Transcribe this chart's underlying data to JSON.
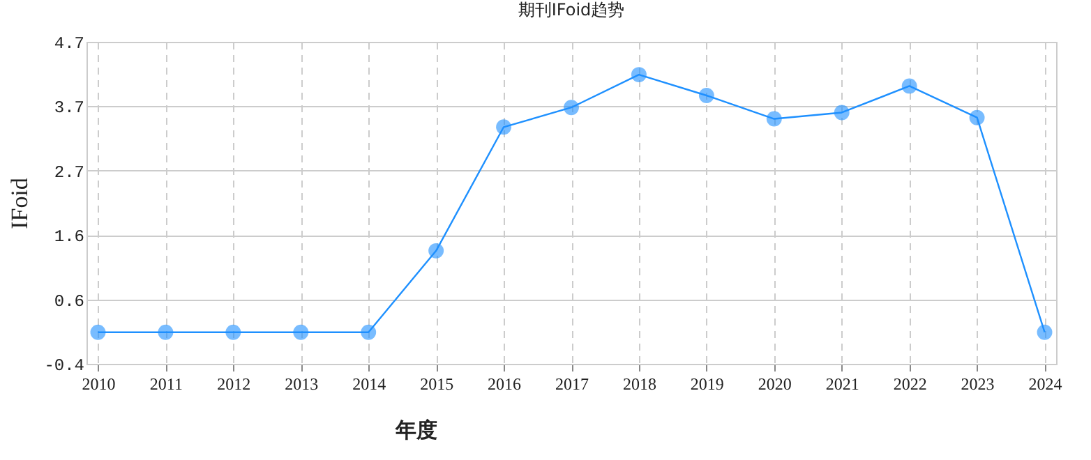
{
  "chart_data": {
    "type": "line",
    "title": "期刊IFoid趋势",
    "xlabel": "年度",
    "ylabel": "IFoid",
    "categories": [
      "2010",
      "2011",
      "2012",
      "2013",
      "2014",
      "2015",
      "2016",
      "2017",
      "2018",
      "2019",
      "2020",
      "2021",
      "2022",
      "2023",
      "2024"
    ],
    "series": [
      {
        "color": "#1e90ff",
        "values": [
          0.1,
          0.1,
          0.1,
          0.1,
          0.1,
          1.39,
          3.35,
          3.66,
          4.18,
          3.85,
          3.48,
          3.58,
          4.0,
          3.5,
          0.1
        ]
      }
    ],
    "ylim": [
      -0.4,
      4.7
    ],
    "yticks": [
      -0.4,
      {
        "value": 0.62,
        "label": "0.6"
      },
      {
        "value": 1.64,
        "label": "1.6"
      },
      {
        "value": 2.66,
        "label": "2.7"
      },
      {
        "value": 3.68,
        "label": "3.7"
      },
      4.7
    ],
    "grid": true,
    "marker": "circle",
    "line_style": "solid"
  }
}
